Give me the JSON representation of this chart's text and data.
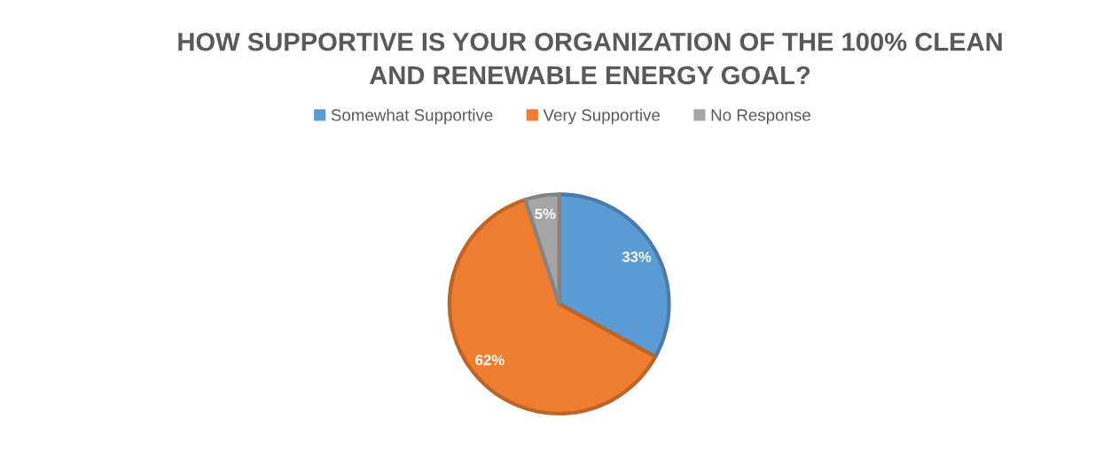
{
  "chart_data": {
    "type": "pie",
    "title": "HOW SUPPORTIVE IS YOUR ORGANIZATION OF THE 100% CLEAN\nAND RENEWABLE ENERGY GOAL?",
    "categories": [
      "Somewhat Supportive",
      "Very Supportive",
      "No Response"
    ],
    "values": [
      33,
      62,
      5
    ],
    "colors": [
      "#5b9bd5",
      "#ed7d31",
      "#a5a5a5"
    ],
    "value_labels": [
      "33%",
      "62%",
      "5%"
    ],
    "legend": "top"
  }
}
